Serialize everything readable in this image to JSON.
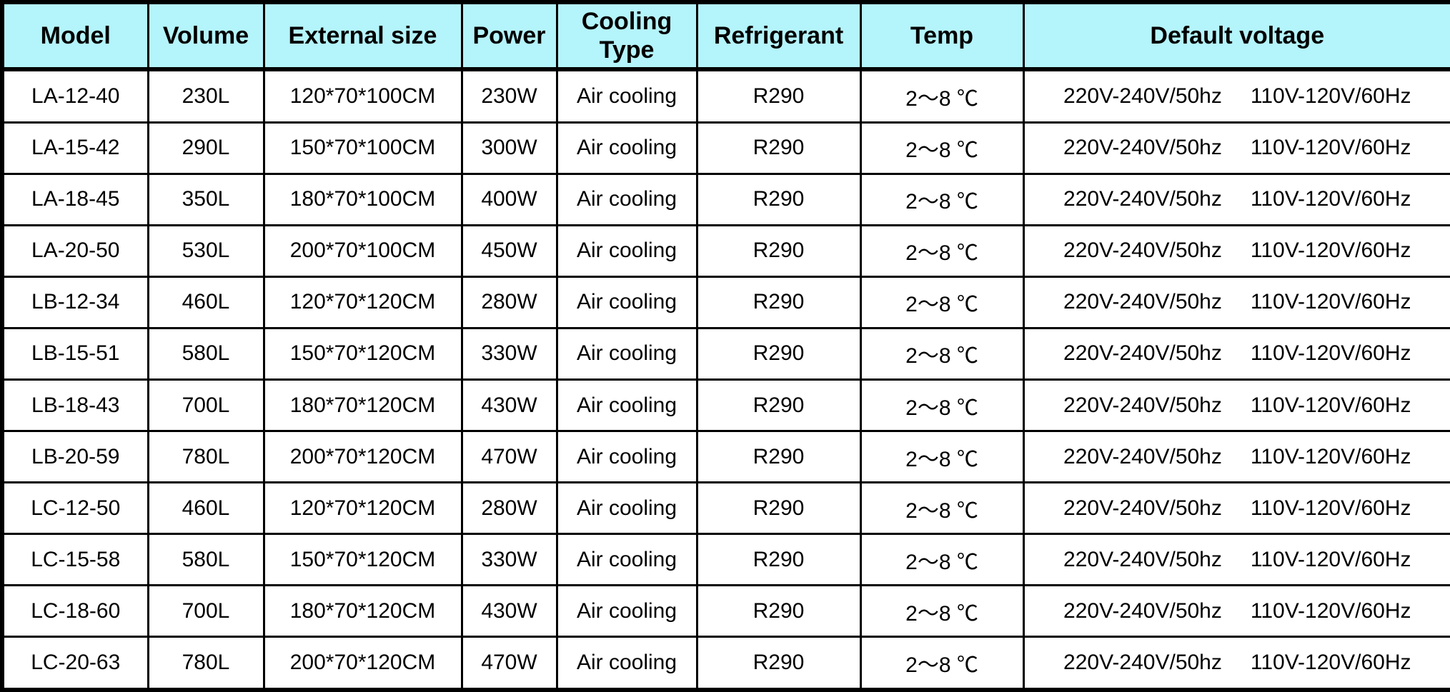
{
  "colors": {
    "header_bg": "#B4F4FB",
    "border": "#000000",
    "cell_bg": "#FFFFFF",
    "text": "#000000"
  },
  "table": {
    "columns": [
      {
        "key": "model",
        "label": "Model"
      },
      {
        "key": "volume",
        "label": "Volume"
      },
      {
        "key": "external_size",
        "label": "External size"
      },
      {
        "key": "power",
        "label": "Power"
      },
      {
        "key": "cooling_type",
        "label": "Cooling Type"
      },
      {
        "key": "refrigerant",
        "label": "Refrigerant"
      },
      {
        "key": "temp",
        "label": "Temp"
      },
      {
        "key": "default_voltage",
        "label": "Default voltage"
      }
    ],
    "rows": [
      {
        "model": "LA-12-40",
        "volume": "230L",
        "external_size": "120*70*100CM",
        "power": "230W",
        "cooling_type": "Air cooling",
        "refrigerant": "R290",
        "temp": "2～8 ℃",
        "default_voltage": [
          "220V-240V/50hz",
          "110V-120V/60Hz"
        ]
      },
      {
        "model": "LA-15-42",
        "volume": "290L",
        "external_size": "150*70*100CM",
        "power": "300W",
        "cooling_type": "Air cooling",
        "refrigerant": "R290",
        "temp": "2～8 ℃",
        "default_voltage": [
          "220V-240V/50hz",
          "110V-120V/60Hz"
        ]
      },
      {
        "model": "LA-18-45",
        "volume": "350L",
        "external_size": "180*70*100CM",
        "power": "400W",
        "cooling_type": "Air cooling",
        "refrigerant": "R290",
        "temp": "2～8 ℃",
        "default_voltage": [
          "220V-240V/50hz",
          "110V-120V/60Hz"
        ]
      },
      {
        "model": "LA-20-50",
        "volume": "530L",
        "external_size": "200*70*100CM",
        "power": "450W",
        "cooling_type": "Air cooling",
        "refrigerant": "R290",
        "temp": "2～8 ℃",
        "default_voltage": [
          "220V-240V/50hz",
          "110V-120V/60Hz"
        ]
      },
      {
        "model": "LB-12-34",
        "volume": "460L",
        "external_size": "120*70*120CM",
        "power": "280W",
        "cooling_type": "Air cooling",
        "refrigerant": "R290",
        "temp": "2～8 ℃",
        "default_voltage": [
          "220V-240V/50hz",
          "110V-120V/60Hz"
        ]
      },
      {
        "model": "LB-15-51",
        "volume": "580L",
        "external_size": "150*70*120CM",
        "power": "330W",
        "cooling_type": "Air cooling",
        "refrigerant": "R290",
        "temp": "2～8 ℃",
        "default_voltage": [
          "220V-240V/50hz",
          "110V-120V/60Hz"
        ]
      },
      {
        "model": "LB-18-43",
        "volume": "700L",
        "external_size": "180*70*120CM",
        "power": "430W",
        "cooling_type": "Air cooling",
        "refrigerant": "R290",
        "temp": "2～8 ℃",
        "default_voltage": [
          "220V-240V/50hz",
          "110V-120V/60Hz"
        ]
      },
      {
        "model": "LB-20-59",
        "volume": "780L",
        "external_size": "200*70*120CM",
        "power": "470W",
        "cooling_type": "Air cooling",
        "refrigerant": "R290",
        "temp": "2～8 ℃",
        "default_voltage": [
          "220V-240V/50hz",
          "110V-120V/60Hz"
        ]
      },
      {
        "model": "LC-12-50",
        "volume": "460L",
        "external_size": "120*70*120CM",
        "power": "280W",
        "cooling_type": "Air cooling",
        "refrigerant": "R290",
        "temp": "2～8 ℃",
        "default_voltage": [
          "220V-240V/50hz",
          "110V-120V/60Hz"
        ]
      },
      {
        "model": "LC-15-58",
        "volume": "580L",
        "external_size": "150*70*120CM",
        "power": "330W",
        "cooling_type": "Air cooling",
        "refrigerant": "R290",
        "temp": "2～8 ℃",
        "default_voltage": [
          "220V-240V/50hz",
          "110V-120V/60Hz"
        ]
      },
      {
        "model": "LC-18-60",
        "volume": "700L",
        "external_size": "180*70*120CM",
        "power": "430W",
        "cooling_type": "Air cooling",
        "refrigerant": "R290",
        "temp": "2～8 ℃",
        "default_voltage": [
          "220V-240V/50hz",
          "110V-120V/60Hz"
        ]
      },
      {
        "model": "LC-20-63",
        "volume": "780L",
        "external_size": "200*70*120CM",
        "power": "470W",
        "cooling_type": "Air cooling",
        "refrigerant": "R290",
        "temp": "2～8 ℃",
        "default_voltage": [
          "220V-240V/50hz",
          "110V-120V/60Hz"
        ]
      }
    ]
  }
}
